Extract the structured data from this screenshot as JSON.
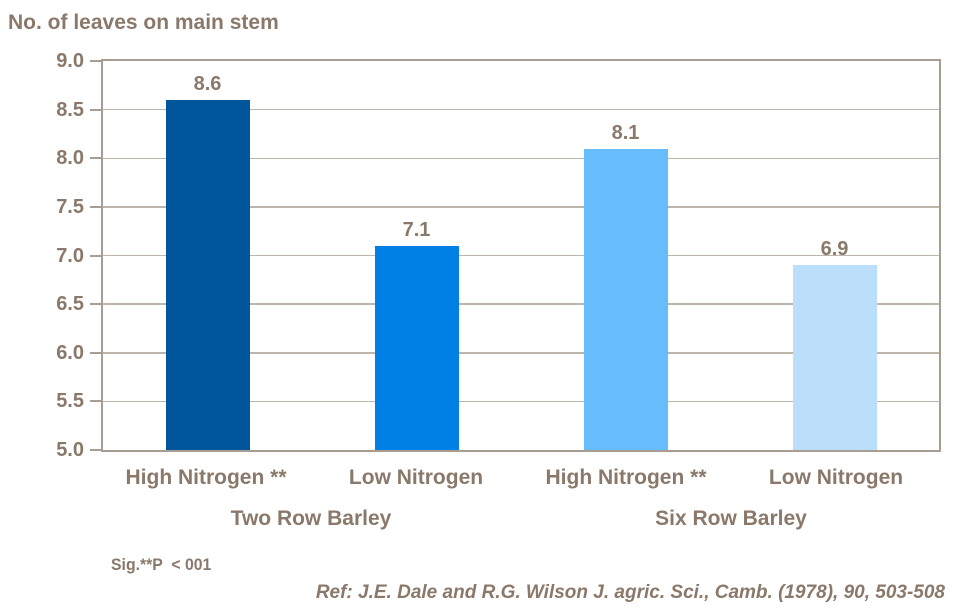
{
  "chart_data": {
    "type": "bar",
    "title": "No. of leaves on main stem",
    "categories": [
      "High Nitrogen **",
      "Low Nitrogen",
      "High Nitrogen **",
      "Low Nitrogen"
    ],
    "values": [
      8.6,
      7.1,
      8.1,
      6.9
    ],
    "value_labels": [
      "8.6",
      "7.1",
      "8.1",
      "6.9"
    ],
    "groups": [
      {
        "label": "Two Row Barley",
        "span": [
          0,
          1
        ]
      },
      {
        "label": "Six Row Barley",
        "span": [
          2,
          3
        ]
      }
    ],
    "bar_colors": [
      "#00569B",
      "#0080E4",
      "#67BCFC",
      "#BBDEFB"
    ],
    "ylim": [
      5.0,
      9.0
    ],
    "ytick_step": 0.5,
    "yticks": [
      "9.0",
      "8.5",
      "8.0",
      "7.5",
      "7.0",
      "6.5",
      "6.0",
      "5.5",
      "5.0"
    ],
    "grid": true,
    "legend": "none",
    "notes": {
      "sig": "Sig.**P  < 001",
      "ref": "Ref: J.E. Dale and R.G. Wilson J. agric. Sci., Camb. (1978), 90, 503-508"
    },
    "colors": {
      "text": "#8A796A",
      "frame": "#A79D92",
      "gridline": "#BDB4AA",
      "background": "#FFFFFF"
    }
  }
}
